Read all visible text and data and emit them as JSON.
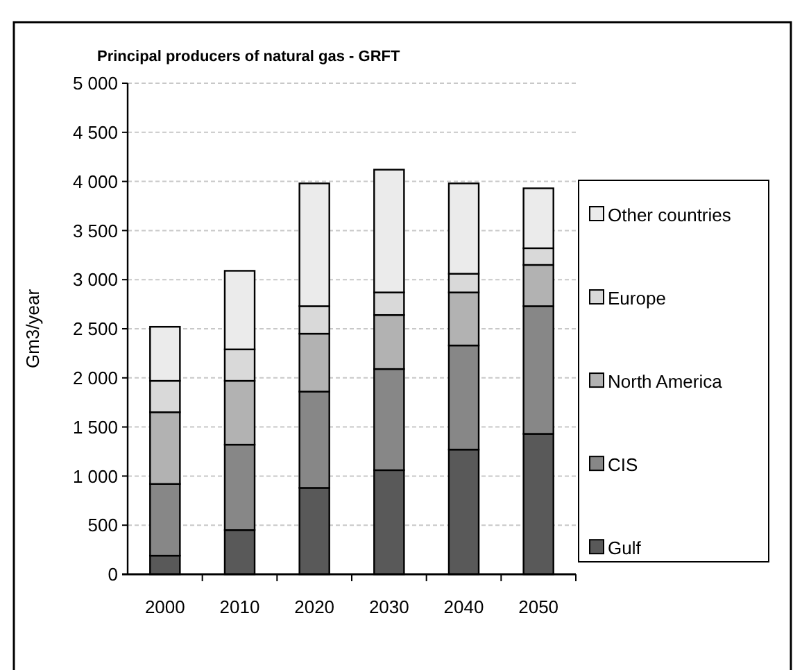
{
  "chart_data": {
    "type": "bar",
    "title": "Principal producers of natural gas - GRFT",
    "ylabel": "Gm3/year",
    "categories": [
      "2000",
      "2010",
      "2020",
      "2030",
      "2040",
      "2050"
    ],
    "stacked": true,
    "series": [
      {
        "name": "Gulf",
        "color": "#595959",
        "values": [
          190,
          450,
          880,
          1060,
          1270,
          1430
        ]
      },
      {
        "name": "CIS",
        "color": "#878787",
        "values": [
          730,
          870,
          980,
          1030,
          1060,
          1300
        ]
      },
      {
        "name": "North America",
        "color": "#b2b2b2",
        "values": [
          730,
          650,
          590,
          550,
          540,
          420
        ]
      },
      {
        "name": "Europe",
        "color": "#d9d9d9",
        "values": [
          320,
          320,
          280,
          230,
          190,
          170
        ]
      },
      {
        "name": "Other countries",
        "color": "#ebebeb",
        "values": [
          550,
          800,
          1250,
          1250,
          920,
          610
        ]
      }
    ],
    "ylim": [
      0,
      5000
    ],
    "yticks": [
      0,
      500,
      {
        "value": 1000,
        "label": "1 000"
      },
      {
        "value": 1500,
        "label": "1 500"
      },
      {
        "value": 2000,
        "label": "2 000"
      },
      {
        "value": 2500,
        "label": "2 500"
      },
      {
        "value": 3000,
        "label": "3 000"
      },
      {
        "value": 3500,
        "label": "3 500"
      },
      {
        "value": 4000,
        "label": "4 000"
      },
      {
        "value": 4500,
        "label": "4 500"
      },
      {
        "value": 5000,
        "label": "5 000"
      }
    ],
    "grid": "y",
    "legend": "right"
  }
}
